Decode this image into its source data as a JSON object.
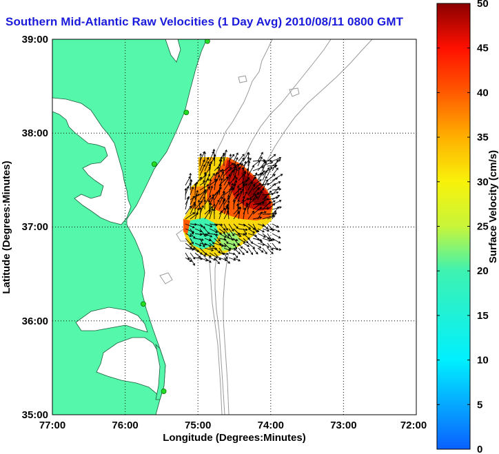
{
  "title": "Southern Mid-Atlantic Raw Velocities (1 Day Avg) 2010/08/11 0800 GMT",
  "xlabel": "Longitude (Degrees:Minutes)",
  "ylabel": "Latitude (Degrees:Minutes)",
  "x_ticks": [
    "77:00",
    "76:00",
    "75:00",
    "74:00",
    "73:00",
    "72:00"
  ],
  "y_ticks": [
    "39:00",
    "38:00",
    "37:00",
    "36:00",
    "35:00"
  ],
  "colorbar": {
    "label": "Surface Velocity (cm/s)",
    "ticks": [
      "0",
      "5",
      "10",
      "15",
      "20",
      "25",
      "30",
      "35",
      "40",
      "45",
      "50"
    ],
    "min": 0,
    "max": 50
  },
  "colors": {
    "land": "#55f7aa",
    "title": "#1a1adc",
    "bathymetry": "#999999"
  },
  "map": {
    "lon_range": [
      -77,
      -72
    ],
    "lat_range": [
      35,
      39
    ],
    "grid": "dotted",
    "stations": [
      {
        "lon": -74.87,
        "lat": 38.98
      },
      {
        "lon": -75.16,
        "lat": 38.22
      },
      {
        "lon": -75.6,
        "lat": 37.67
      },
      {
        "lon": -75.75,
        "lat": 36.18
      },
      {
        "lon": -75.47,
        "lat": 35.25
      }
    ]
  }
}
